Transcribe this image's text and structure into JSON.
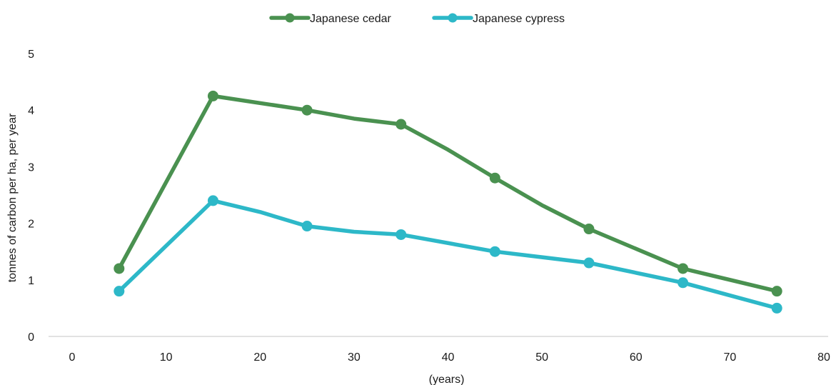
{
  "chart_data": {
    "type": "line",
    "title": "",
    "xlabel": "(years)",
    "ylabel": "tonnes of carbon per ha, per year",
    "xlim": [
      0,
      80
    ],
    "ylim": [
      0,
      5
    ],
    "x_ticks": [
      0,
      10,
      20,
      30,
      40,
      50,
      60,
      70,
      80
    ],
    "y_ticks": [
      0,
      1,
      2,
      3,
      4,
      5
    ],
    "grid": false,
    "legend_position": "top-center",
    "series": [
      {
        "name": "Japanese cedar",
        "color": "#4a9150",
        "points": [
          {
            "x": 5,
            "y": 1.2,
            "marker": true
          },
          {
            "x": 15,
            "y": 4.25,
            "marker": true
          },
          {
            "x": 25,
            "y": 4.0,
            "marker": true
          },
          {
            "x": 30,
            "y": 3.85,
            "marker": false
          },
          {
            "x": 35,
            "y": 3.75,
            "marker": true
          },
          {
            "x": 40,
            "y": 3.3,
            "marker": false
          },
          {
            "x": 45,
            "y": 2.8,
            "marker": true
          },
          {
            "x": 50,
            "y": 2.32,
            "marker": false
          },
          {
            "x": 55,
            "y": 1.9,
            "marker": true
          },
          {
            "x": 65,
            "y": 1.2,
            "marker": true
          },
          {
            "x": 75,
            "y": 0.8,
            "marker": true
          }
        ]
      },
      {
        "name": "Japanese cypress",
        "color": "#2db8c8",
        "points": [
          {
            "x": 5,
            "y": 0.8,
            "marker": true
          },
          {
            "x": 15,
            "y": 2.4,
            "marker": true
          },
          {
            "x": 20,
            "y": 2.2,
            "marker": false
          },
          {
            "x": 25,
            "y": 1.95,
            "marker": true
          },
          {
            "x": 30,
            "y": 1.85,
            "marker": false
          },
          {
            "x": 35,
            "y": 1.8,
            "marker": true
          },
          {
            "x": 45,
            "y": 1.5,
            "marker": true
          },
          {
            "x": 55,
            "y": 1.3,
            "marker": true
          },
          {
            "x": 65,
            "y": 0.95,
            "marker": true
          },
          {
            "x": 75,
            "y": 0.5,
            "marker": true
          }
        ]
      }
    ]
  }
}
